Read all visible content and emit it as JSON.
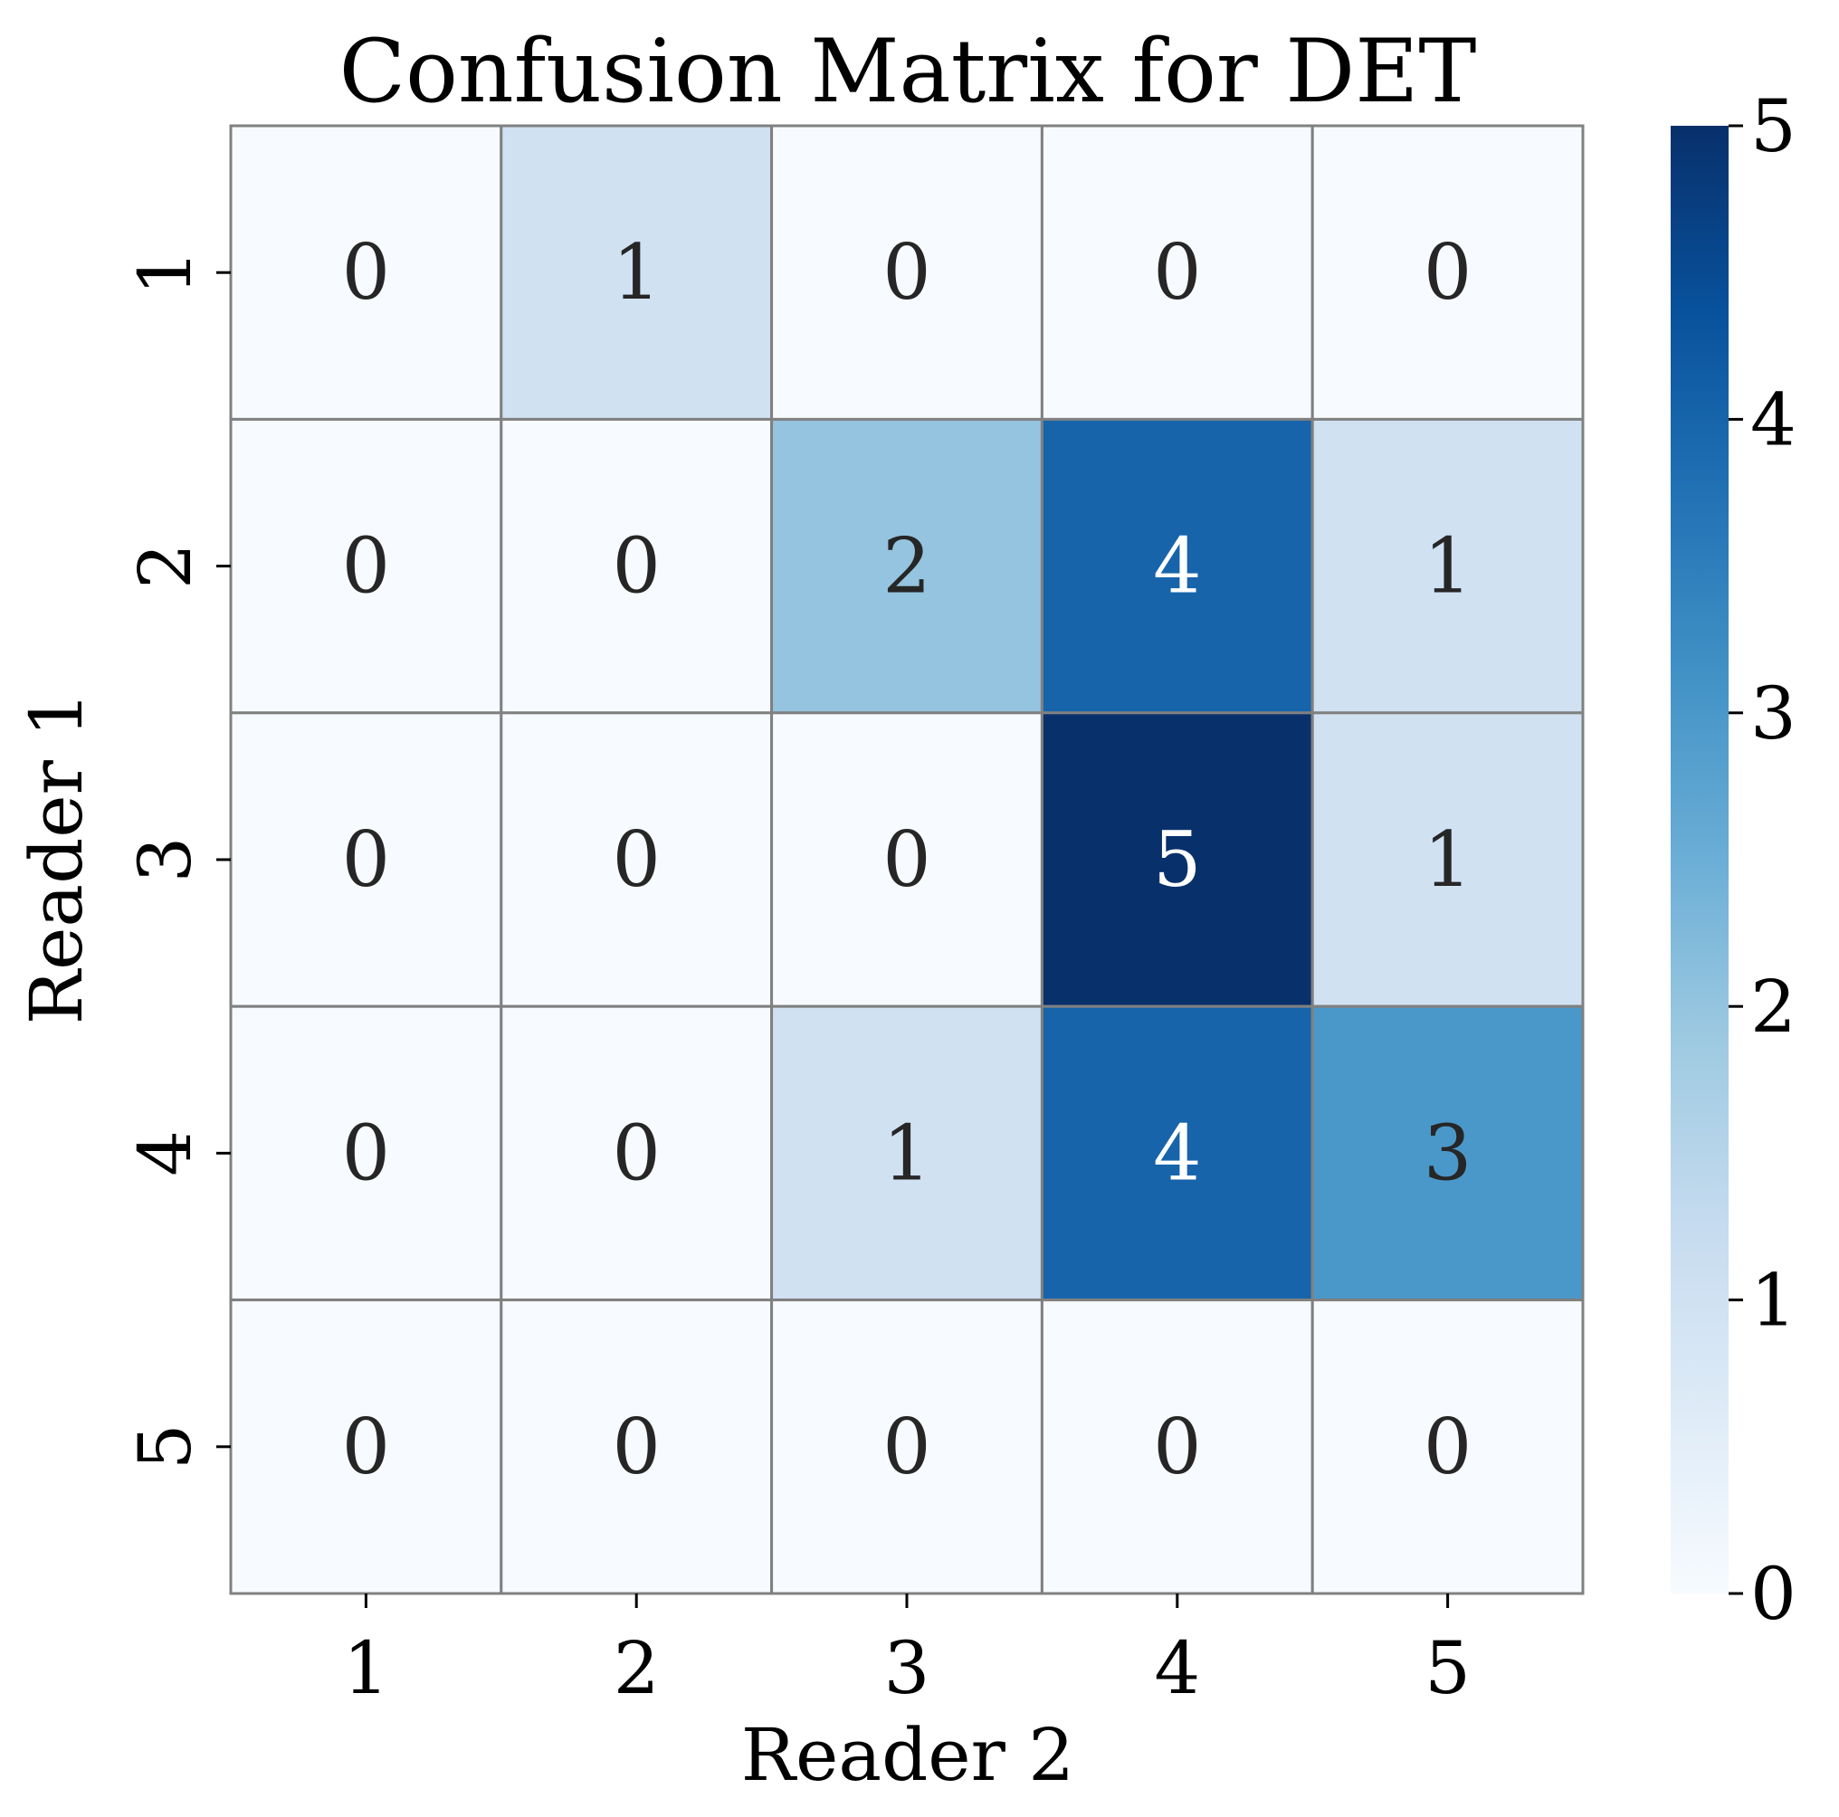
{
  "chart_data": {
    "type": "heatmap",
    "title": "Confusion Matrix for DET",
    "xlabel": "Reader 2",
    "ylabel": "Reader 1",
    "x_categories": [
      "1",
      "2",
      "3",
      "4",
      "5"
    ],
    "y_categories": [
      "1",
      "2",
      "3",
      "4",
      "5"
    ],
    "values": [
      [
        0,
        1,
        0,
        0,
        0
      ],
      [
        0,
        0,
        2,
        4,
        1
      ],
      [
        0,
        0,
        0,
        5,
        1
      ],
      [
        0,
        0,
        1,
        4,
        3
      ],
      [
        0,
        0,
        0,
        0,
        0
      ]
    ],
    "colorbar": {
      "range": [
        0,
        5
      ],
      "ticks": [
        "0",
        "1",
        "2",
        "3",
        "4",
        "5"
      ]
    },
    "colormap": "Blues",
    "cell_border_color": "#808080",
    "dark_text_color": "#262626",
    "light_text_color": "#ffffff"
  }
}
